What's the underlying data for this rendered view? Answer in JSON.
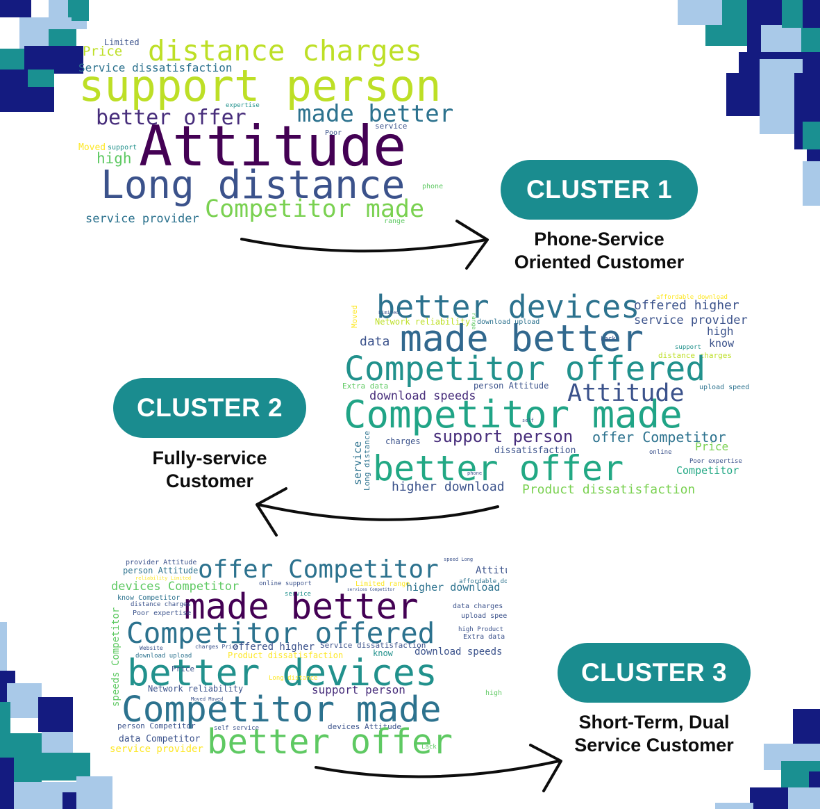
{
  "colors": {
    "teal_pill": "#1a8c8f",
    "navy": "#141b80",
    "teal_block": "#1a9091",
    "light_blue": "#a9c9e8",
    "arrow": "#0d0d0d"
  },
  "clusters": [
    {
      "label": "CLUSTER 1",
      "subtitle_lines": [
        "Phone-Service",
        "Oriented Customer"
      ]
    },
    {
      "label": "CLUSTER 2",
      "subtitle_lines": [
        "Fully-service",
        "Customer"
      ]
    },
    {
      "label": "CLUSTER 3",
      "subtitle_lines": [
        "Short-Term, Dual",
        "Service Customer"
      ]
    }
  ],
  "wordclouds": [
    {
      "words": [
        {
          "text": "Limited",
          "color": "#3b528b"
        },
        {
          "text": "Price",
          "color": "#bddf26"
        },
        {
          "text": "distance charges",
          "color": "#bddf26"
        },
        {
          "text": "Service dissatisfaction",
          "color": "#2c728e"
        },
        {
          "text": "support person",
          "color": "#bddf26"
        },
        {
          "text": "expertise",
          "color": "#21918c"
        },
        {
          "text": "better offer",
          "color": "#472d7b"
        },
        {
          "text": "made better",
          "color": "#2c728e"
        },
        {
          "text": "service",
          "color": "#3b528b"
        },
        {
          "text": "Poor",
          "color": "#3b528b"
        },
        {
          "text": "Moved",
          "color": "#fde725"
        },
        {
          "text": "support",
          "color": "#21918c"
        },
        {
          "text": "high",
          "color": "#5ec962"
        },
        {
          "text": "Attitude",
          "color": "#440154"
        },
        {
          "text": "Long distance",
          "color": "#3b528b"
        },
        {
          "text": "phone",
          "color": "#5ec962"
        },
        {
          "text": "Competitor made",
          "color": "#7ad151"
        },
        {
          "text": "service provider",
          "color": "#2c728e"
        },
        {
          "text": "range",
          "color": "#5ec962"
        }
      ]
    },
    {
      "words": [
        {
          "text": "better devices",
          "color": "#2c728e"
        },
        {
          "text": "affordable download",
          "color": "#fde725"
        },
        {
          "text": "offered higher",
          "color": "#3b528b"
        },
        {
          "text": "Moved",
          "color": "#fde725"
        },
        {
          "text": "Limited",
          "color": "#3b528b"
        },
        {
          "text": "range",
          "color": "#5ec962"
        },
        {
          "text": "Network reliability",
          "color": "#bddf26"
        },
        {
          "text": "download upload",
          "color": "#2c728e"
        },
        {
          "text": "service provider",
          "color": "#3b528b"
        },
        {
          "text": "made better",
          "color": "#31688e"
        },
        {
          "text": "high",
          "color": "#3b528b"
        },
        {
          "text": "data",
          "color": "#3b528b"
        },
        {
          "text": "Lack",
          "color": "#3b528b"
        },
        {
          "text": "know",
          "color": "#3b528b"
        },
        {
          "text": "support",
          "color": "#21918c"
        },
        {
          "text": "distance charges",
          "color": "#bddf26"
        },
        {
          "text": "Competitor offered",
          "color": "#21918c"
        },
        {
          "text": "Extra data",
          "color": "#5ec962"
        },
        {
          "text": "person Attitude",
          "color": "#3b528b"
        },
        {
          "text": "upload speed",
          "color": "#2c728e"
        },
        {
          "text": "Attitude",
          "color": "#3b528b"
        },
        {
          "text": "download speeds",
          "color": "#472d7b"
        },
        {
          "text": "Competitor made",
          "color": "#20a486"
        },
        {
          "text": "self",
          "color": "#3b528b"
        },
        {
          "text": "service",
          "color": "#2c728e"
        },
        {
          "text": "Long distance",
          "color": "#2c728e"
        },
        {
          "text": "charges",
          "color": "#3b528b"
        },
        {
          "text": "support person",
          "color": "#472d7b"
        },
        {
          "text": "offer Competitor",
          "color": "#2c728e"
        },
        {
          "text": "dissatisfaction",
          "color": "#3b528b"
        },
        {
          "text": "online",
          "color": "#3b528b"
        },
        {
          "text": "Price",
          "color": "#7ad151"
        },
        {
          "text": "better offer",
          "color": "#22a884"
        },
        {
          "text": "Poor expertise",
          "color": "#3b528b"
        },
        {
          "text": "phone",
          "color": "#3b528b"
        },
        {
          "text": "Competitor",
          "color": "#22a884"
        },
        {
          "text": "higher download",
          "color": "#3b528b"
        },
        {
          "text": "Product dissatisfaction",
          "color": "#7ad151"
        }
      ]
    },
    {
      "words": [
        {
          "text": "provider Attitude",
          "color": "#3b528b"
        },
        {
          "text": "person Attitude",
          "color": "#2c728e"
        },
        {
          "text": "reliability Limited",
          "color": "#fde725"
        },
        {
          "text": "offer Competitor",
          "color": "#2c728e"
        },
        {
          "text": "speed Long",
          "color": "#3b528b"
        },
        {
          "text": "Attitude",
          "color": "#3b528b"
        },
        {
          "text": "devices Competitor",
          "color": "#5ec962"
        },
        {
          "text": "online support",
          "color": "#3b528b"
        },
        {
          "text": "Limited range",
          "color": "#fde725"
        },
        {
          "text": "services Competitor",
          "color": "#3b528b"
        },
        {
          "text": "affordable download",
          "color": "#2c728e"
        },
        {
          "text": "higher download",
          "color": "#2c728e"
        },
        {
          "text": "know Competitor",
          "color": "#2c728e"
        },
        {
          "text": "service",
          "color": "#21918c"
        },
        {
          "text": "made better",
          "color": "#440154"
        },
        {
          "text": "distance charges",
          "color": "#3b528b"
        },
        {
          "text": "data charges",
          "color": "#3b528b"
        },
        {
          "text": "Poor expertise",
          "color": "#3b528b"
        },
        {
          "text": "upload speed",
          "color": "#3b528b"
        },
        {
          "text": "Competitor offered",
          "color": "#2c728e"
        },
        {
          "text": "high Product",
          "color": "#3b528b"
        },
        {
          "text": "Extra data",
          "color": "#3b528b"
        },
        {
          "text": "speeds Competitor",
          "color": "#5ec962"
        },
        {
          "text": "Website",
          "color": "#3b528b"
        },
        {
          "text": "charges Price",
          "color": "#3b528b"
        },
        {
          "text": "offered higher",
          "color": "#3b528b"
        },
        {
          "text": "Service dissatisfaction",
          "color": "#3b528b"
        },
        {
          "text": "download upload",
          "color": "#2c728e"
        },
        {
          "text": "Product dissatisfaction",
          "color": "#fde725"
        },
        {
          "text": "know",
          "color": "#21918c"
        },
        {
          "text": "download speeds",
          "color": "#3b528b"
        },
        {
          "text": "better devices",
          "color": "#21918c"
        },
        {
          "text": "Price",
          "color": "#3b528b"
        },
        {
          "text": "Long distance",
          "color": "#fde725"
        },
        {
          "text": "Network reliability",
          "color": "#3b528b"
        },
        {
          "text": "support person",
          "color": "#472d7b"
        },
        {
          "text": "Moved Moved",
          "color": "#3b528b"
        },
        {
          "text": "high",
          "color": "#5ec962"
        },
        {
          "text": "Competitor made",
          "color": "#2c728e"
        },
        {
          "text": "person Competitor",
          "color": "#3b528b"
        },
        {
          "text": "self service",
          "color": "#3b528b"
        },
        {
          "text": "devices Attitude",
          "color": "#3b528b"
        },
        {
          "text": "data Competitor",
          "color": "#3b528b"
        },
        {
          "text": "better offer",
          "color": "#5ec962"
        },
        {
          "text": "service provider",
          "color": "#fde725"
        },
        {
          "text": "Lack",
          "color": "#5ec962"
        }
      ]
    }
  ]
}
